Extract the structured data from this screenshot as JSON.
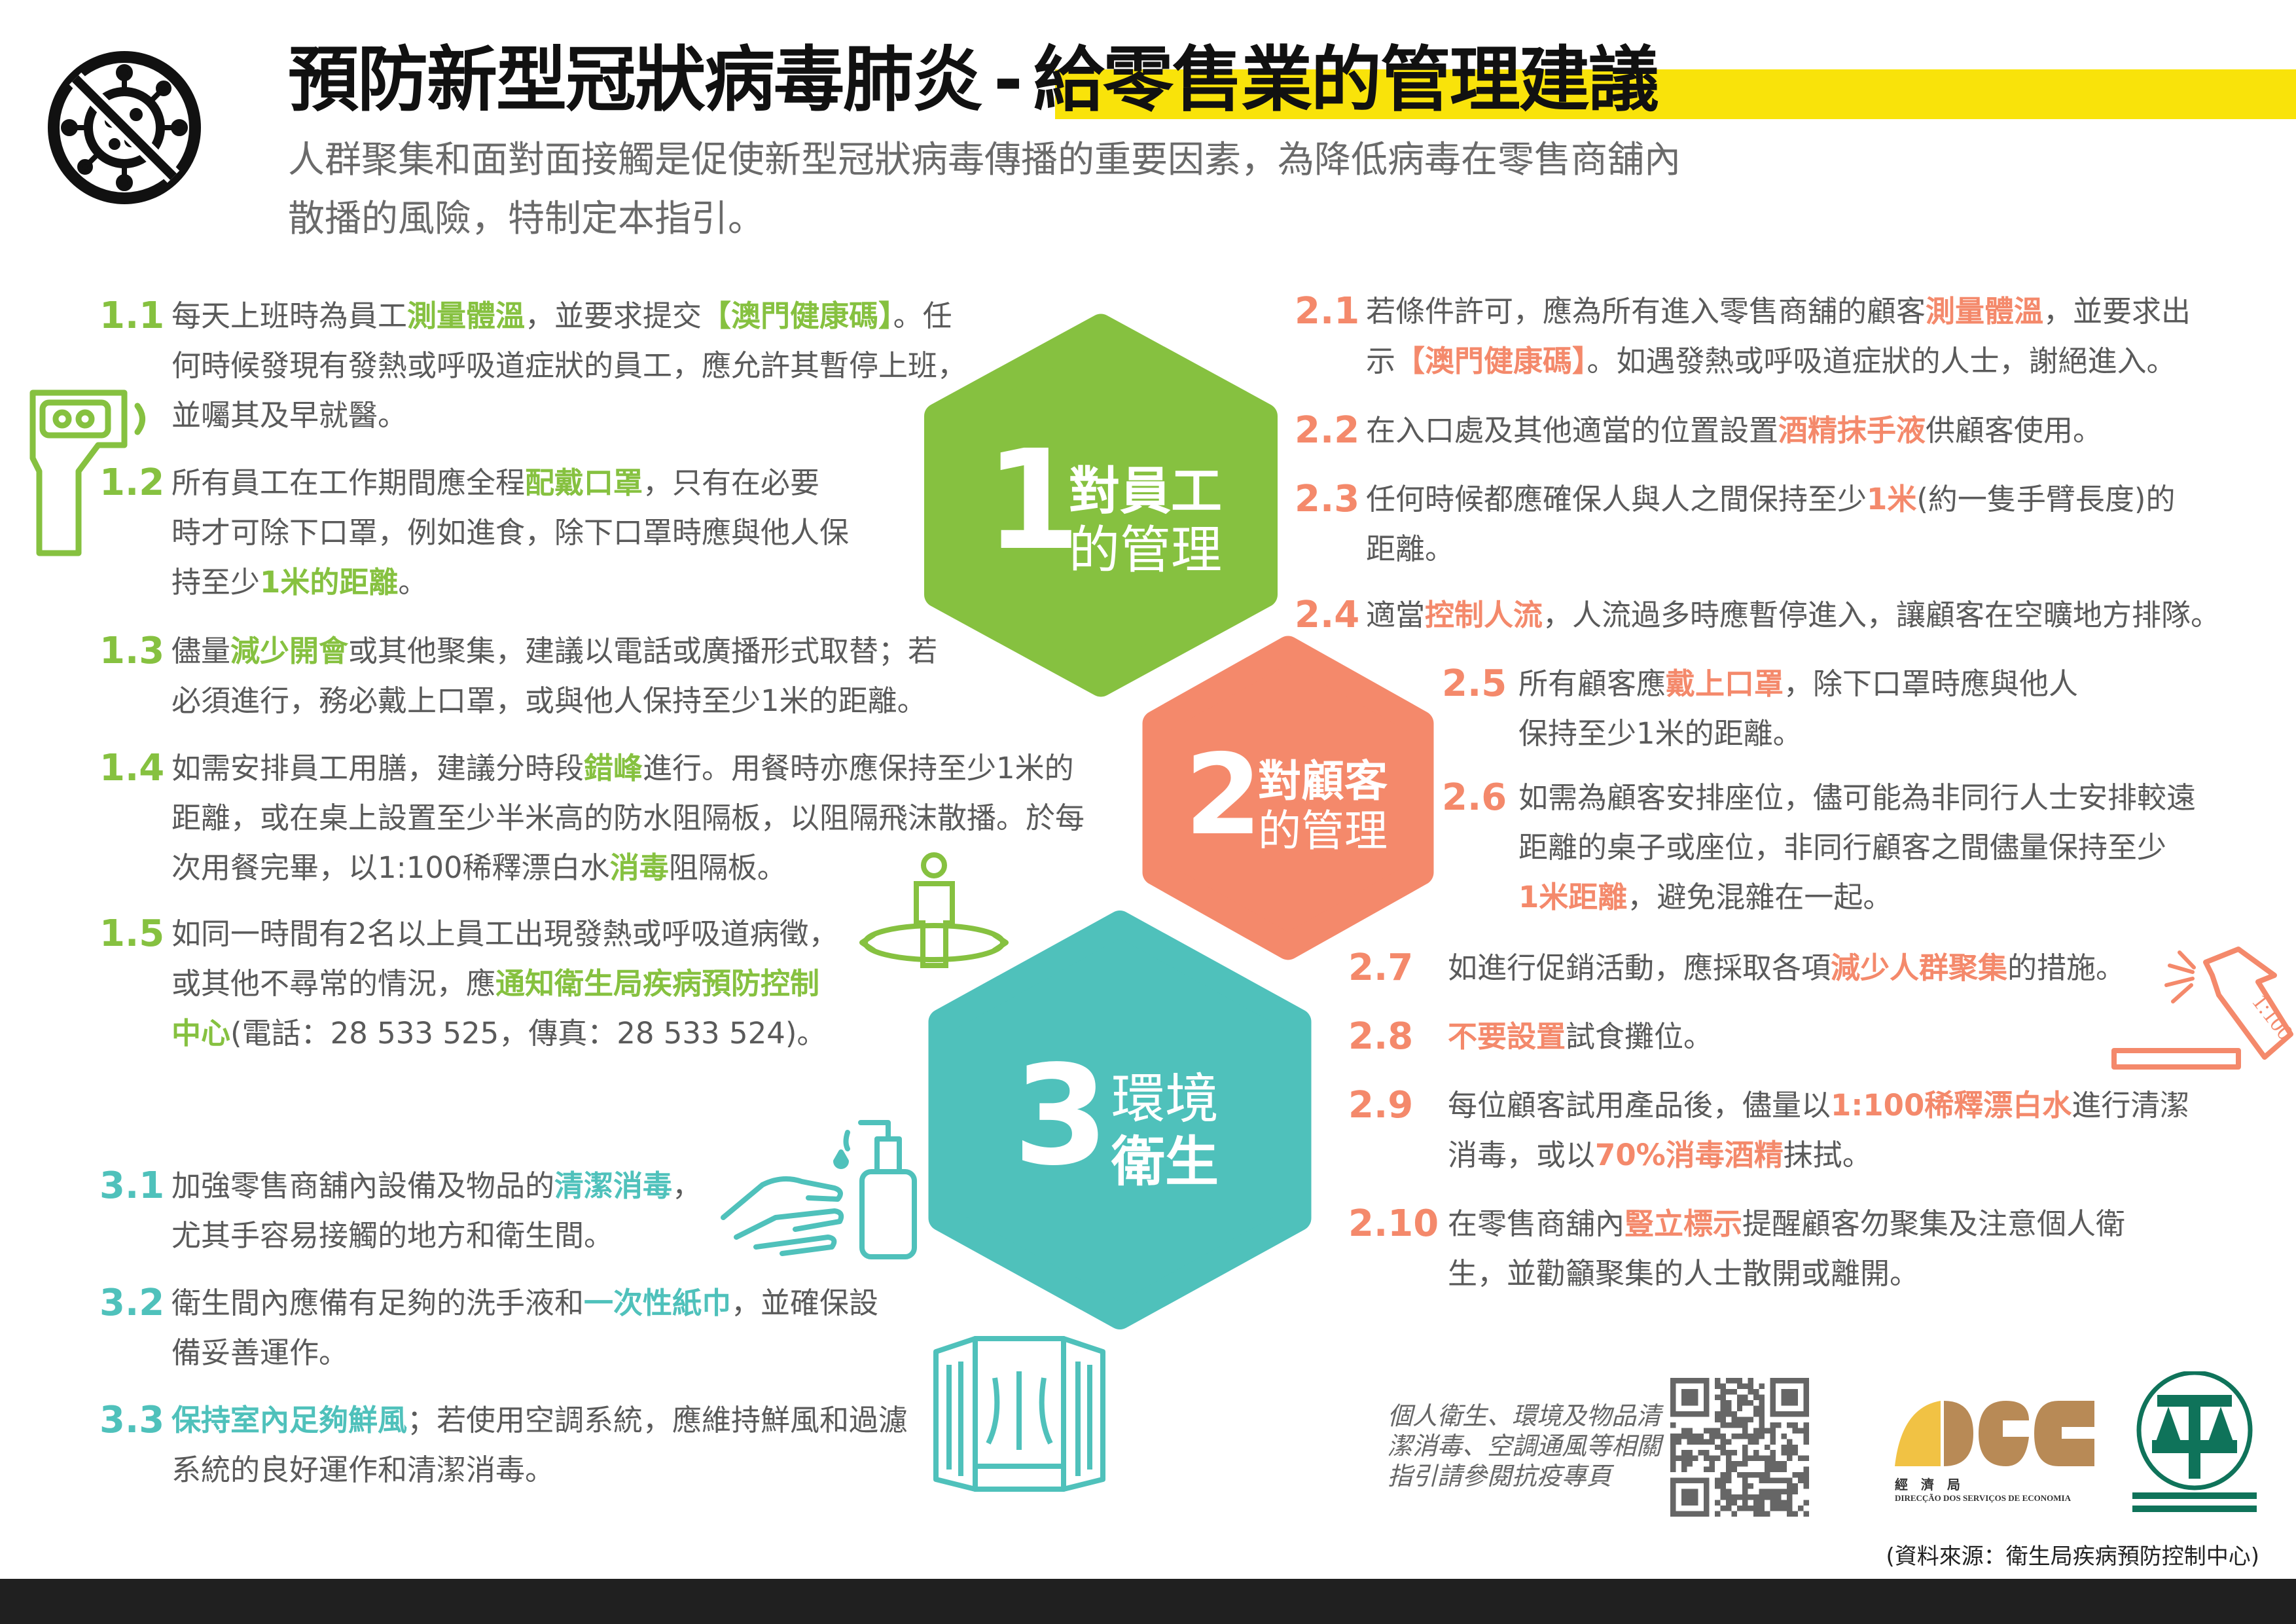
{
  "colors": {
    "green": "#86c140",
    "orange": "#f4896b",
    "teal": "#4fc1bb",
    "yellow": "#f9e30a",
    "text": "#5a5a5a",
    "footer": "#202020"
  },
  "header": {
    "icon": "no-virus-icon",
    "title_main": "預防新型冠狀病毒肺炎",
    "title_dash": "-",
    "title_highlight": "給零售業的管理建議",
    "subtitle_lines": [
      "人群聚集和面對面接觸是促使新型冠狀病毒傳播的重要因素，為降低病毒在零售商舖內",
      "散播的風險，特制定本指引。"
    ]
  },
  "hexagons": [
    {
      "number": "1",
      "line1": "對員工",
      "line2": "的管理",
      "color": "#86c140"
    },
    {
      "number": "2",
      "line1": "對顧客",
      "line2": "的管理",
      "color": "#f4896b"
    },
    {
      "number": "3",
      "line1": "環境",
      "line2": "衛生",
      "color": "#4fc1bb"
    }
  ],
  "items": [
    {
      "num": "1.1",
      "color": "#86c140",
      "lines": [
        [
          {
            "t": "每天上班時為員工"
          },
          {
            "t": "測量體溫",
            "hl": true
          },
          {
            "t": "，並要求提交"
          },
          {
            "t": "【澳門健康碼】",
            "hl": true
          },
          {
            "t": "。任"
          }
        ],
        [
          {
            "t": "何時候發現有發熱或呼吸道症狀的員工，應允許其暫停上班，"
          }
        ],
        [
          {
            "t": "並囑其及早就醫。"
          }
        ]
      ]
    },
    {
      "num": "1.2",
      "color": "#86c140",
      "lines": [
        [
          {
            "t": "所有員工在工作期間應全程"
          },
          {
            "t": "配戴口罩",
            "hl": true
          },
          {
            "t": "，只有在必要"
          }
        ],
        [
          {
            "t": "時才可除下口罩，例如進食，除下口罩時應與他人保"
          }
        ],
        [
          {
            "t": "持至少"
          },
          {
            "t": "1米的距離",
            "hl": true
          },
          {
            "t": "。"
          }
        ]
      ]
    },
    {
      "num": "1.3",
      "color": "#86c140",
      "lines": [
        [
          {
            "t": "儘量"
          },
          {
            "t": "減少開會",
            "hl": true
          },
          {
            "t": "或其他聚集，建議以電話或廣播形式取替；若"
          }
        ],
        [
          {
            "t": "必須進行，務必戴上口罩，或與他人保持至少1米的距離。"
          }
        ]
      ]
    },
    {
      "num": "1.4",
      "color": "#86c140",
      "lines": [
        [
          {
            "t": "如需安排員工用膳，建議分時段"
          },
          {
            "t": "錯峰",
            "hl": true
          },
          {
            "t": "進行。用餐時亦應保持至少1米的"
          }
        ],
        [
          {
            "t": "距離，或在桌上設置至少半米高的防水阻隔板，以阻隔飛沫散播。於每"
          }
        ],
        [
          {
            "t": "次用餐完畢，以1:100稀釋漂白水"
          },
          {
            "t": "消毒",
            "hl": true
          },
          {
            "t": "阻隔板。"
          }
        ]
      ]
    },
    {
      "num": "1.5",
      "color": "#86c140",
      "lines": [
        [
          {
            "t": "如同一時間有2名以上員工出現發熱或呼吸道病徵，"
          }
        ],
        [
          {
            "t": "或其他不尋常的情況，應"
          },
          {
            "t": "通知衛生局疾病預防控制",
            "hl": true
          }
        ],
        [
          {
            "t": "中心",
            "hl": true
          },
          {
            "t": "(電話：28 533 525，傳真：28 533 524)。"
          }
        ]
      ]
    },
    {
      "num": "3.1",
      "color": "#4fc1bb",
      "lines": [
        [
          {
            "t": "加強零售商舖內設備及物品的"
          },
          {
            "t": "清潔消毒",
            "hl": true
          },
          {
            "t": "，"
          }
        ],
        [
          {
            "t": "尤其手容易接觸的地方和衛生間。"
          }
        ]
      ]
    },
    {
      "num": "3.2",
      "color": "#4fc1bb",
      "lines": [
        [
          {
            "t": "衛生間內應備有足夠的洗手液和"
          },
          {
            "t": "一次性紙巾",
            "hl": true
          },
          {
            "t": "，並確保設"
          }
        ],
        [
          {
            "t": "備妥善運作。"
          }
        ]
      ]
    },
    {
      "num": "3.3",
      "color": "#4fc1bb",
      "lines": [
        [
          {
            "t": "保持室內足夠鮮風",
            "hl": true
          },
          {
            "t": "；若使用空調系統，應維持鮮風和過濾"
          }
        ],
        [
          {
            "t": "系統的良好運作和清潔消毒。"
          }
        ]
      ]
    },
    {
      "num": "2.1",
      "color": "#f4896b",
      "lines": [
        [
          {
            "t": "若條件許可，應為所有進入零售商舖的顧客"
          },
          {
            "t": "測量體溫",
            "hl": true
          },
          {
            "t": "，並要求出"
          }
        ],
        [
          {
            "t": "示"
          },
          {
            "t": "【澳門健康碼】",
            "hl": true
          },
          {
            "t": "。如遇發熱或呼吸道症狀的人士，謝絕進入。"
          }
        ]
      ]
    },
    {
      "num": "2.2",
      "color": "#f4896b",
      "lines": [
        [
          {
            "t": "在入口處及其他適當的位置設置"
          },
          {
            "t": "酒精抹手液",
            "hl": true
          },
          {
            "t": "供顧客使用。"
          }
        ]
      ]
    },
    {
      "num": "2.3",
      "color": "#f4896b",
      "lines": [
        [
          {
            "t": "任何時候都應確保人與人之間保持至少"
          },
          {
            "t": "1米",
            "hl": true
          },
          {
            "t": "(約一隻手臂長度)的"
          }
        ],
        [
          {
            "t": "距離。"
          }
        ]
      ]
    },
    {
      "num": "2.4",
      "color": "#f4896b",
      "lines": [
        [
          {
            "t": "適當"
          },
          {
            "t": "控制人流",
            "hl": true
          },
          {
            "t": "，人流過多時應暫停進入，讓顧客在空曠地方排隊。"
          }
        ]
      ]
    },
    {
      "num": "2.5",
      "color": "#f4896b",
      "lines": [
        [
          {
            "t": "所有顧客應"
          },
          {
            "t": "戴上口罩",
            "hl": true
          },
          {
            "t": "，除下口罩時應與他人"
          }
        ],
        [
          {
            "t": "保持至少1米的距離。"
          }
        ]
      ]
    },
    {
      "num": "2.6",
      "color": "#f4896b",
      "lines": [
        [
          {
            "t": "如需為顧客安排座位，儘可能為非同行人士安排較遠"
          }
        ],
        [
          {
            "t": "距離的桌子或座位，非同行顧客之間儘量保持至少"
          }
        ],
        [
          {
            "t": "1米距離",
            "hl": true
          },
          {
            "t": "，避免混雜在一起。"
          }
        ]
      ]
    },
    {
      "num": "2.7",
      "color": "#f4896b",
      "lines": [
        [
          {
            "t": "如進行促銷活動，應採取各項"
          },
          {
            "t": "減少人群聚集",
            "hl": true
          },
          {
            "t": "的措施。"
          }
        ]
      ]
    },
    {
      "num": "2.8",
      "color": "#f4896b",
      "lines": [
        [
          {
            "t": "不要設置",
            "hl": true
          },
          {
            "t": "試食攤位。"
          }
        ]
      ]
    },
    {
      "num": "2.9",
      "color": "#f4896b",
      "lines": [
        [
          {
            "t": "每位顧客試用產品後，儘量以"
          },
          {
            "t": "1:100稀釋漂白水",
            "hl": true
          },
          {
            "t": "進行清潔"
          }
        ],
        [
          {
            "t": "消毒，或以"
          },
          {
            "t": "70%消毒酒精",
            "hl": true
          },
          {
            "t": "抹拭。"
          }
        ]
      ]
    },
    {
      "num": "2.10",
      "color": "#f4896b",
      "lines": [
        [
          {
            "t": "在零售商舖內"
          },
          {
            "t": "豎立標示",
            "hl": true
          },
          {
            "t": "提醒顧客勿聚集及注意個人衛"
          }
        ],
        [
          {
            "t": "生，並勸籲聚集的人士散開或離開。"
          }
        ]
      ]
    }
  ],
  "illustrations": {
    "thermometer": "thermometer-gun-icon",
    "distance": "person-distance-icon",
    "handwash": "hand-sanitizer-icon",
    "window": "open-window-icon",
    "spray": "spray-bottle-icon",
    "spray_label": "1:100"
  },
  "footer": {
    "qr_note_lines": [
      "個人衛生、環境及物品清",
      "潔消毒、空調通風等相關",
      "指引請參閱抗疫專頁"
    ],
    "dsec_logo_cn": "經　濟　局",
    "dsec_logo_pt": "DIRECÇÃO DOS SERVIÇOS DE ECONOMIA",
    "source": "(資料來源：衛生局疾病預防控制中心)"
  }
}
